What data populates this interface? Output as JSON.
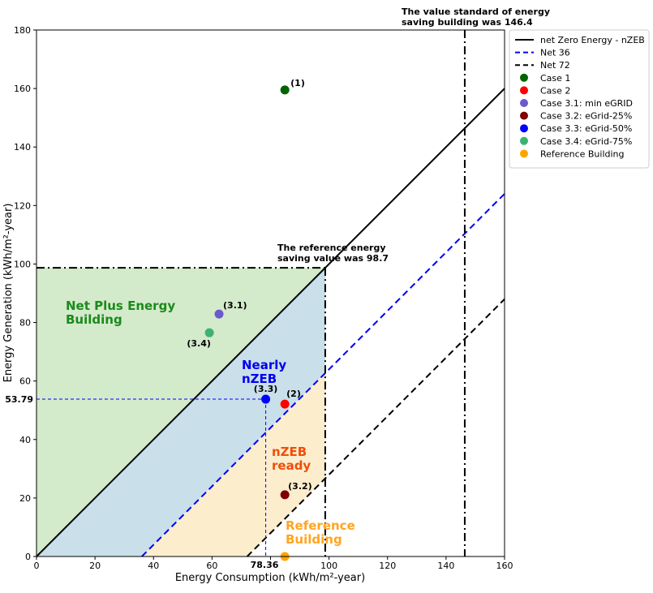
{
  "chart_data": {
    "type": "scatter",
    "xlabel": "Energy Consumption (kWh/m²-year)",
    "ylabel": "Energy Generation (kWh/m²-year)",
    "xlim": [
      0,
      160
    ],
    "ylim": [
      0,
      180
    ],
    "xticks": [
      0,
      20,
      40,
      60,
      80,
      100,
      120,
      140,
      160
    ],
    "yticks": [
      0,
      20,
      40,
      60,
      80,
      100,
      120,
      140,
      160,
      180
    ],
    "grid": false,
    "legend_position": "outside-top-right",
    "lines": [
      {
        "name": "net Zero Energy - nZEB",
        "offset": 0,
        "color": "#000000",
        "style": "solid"
      },
      {
        "name": "Net 36",
        "offset": 36,
        "color": "#0000ff",
        "style": "dashed"
      },
      {
        "name": "Net 72",
        "offset": 72,
        "color": "#000000",
        "style": "dashed"
      }
    ],
    "points": [
      {
        "name": "Case 1",
        "x": 84.9,
        "y": 159.5,
        "color": "#006400",
        "label": "(1)"
      },
      {
        "name": "Case 2",
        "x": 84.9,
        "y": 52.1,
        "color": "#ff0000",
        "label": "(2)"
      },
      {
        "name": "Case 3.1: min eGRID",
        "x": 62.4,
        "y": 82.9,
        "color": "#6a5acd",
        "label": "(3.1)"
      },
      {
        "name": "Case 3.2: eGrid-25%",
        "x": 84.9,
        "y": 21.1,
        "color": "#800000",
        "label": "(3.2)"
      },
      {
        "name": "Case 3.3: eGrid-50%",
        "x": 78.36,
        "y": 53.79,
        "color": "#0000ff",
        "label": "(3.3)"
      },
      {
        "name": "Case 3.4: eGrid-75%",
        "x": 59.1,
        "y": 76.5,
        "color": "#3cb371",
        "label": "(3.4)"
      },
      {
        "name": "Reference Building",
        "x": 84.9,
        "y": 0,
        "color": "#ffa500",
        "label": ""
      }
    ],
    "reference_value": 98.7,
    "standard_value": 146.4,
    "case33_x_label": "78.36",
    "case33_y_label": "53.79",
    "annotations": {
      "standard_line1": "The value standard of energy",
      "standard_line2": "saving building was 146.4",
      "reference_line1": "The reference energy",
      "reference_line2": "saving value was 98.7",
      "region_plus_1": "Net Plus Energy",
      "region_plus_2": "Building",
      "region_nearly_1": "Nearly",
      "region_nearly_2": "nZEB",
      "region_ready_1": "nZEB",
      "region_ready_2": "ready",
      "ref_1": "Reference",
      "ref_2": "Building"
    },
    "colors": {
      "plus": "#d3eacb",
      "nearly": "#c9dfea",
      "ready": "#fcedcd",
      "plus_text": "#1a8a1a",
      "nearly_text": "#0000ee",
      "ready_text": "#f04e0c",
      "ref_text": "#ffa520"
    }
  }
}
